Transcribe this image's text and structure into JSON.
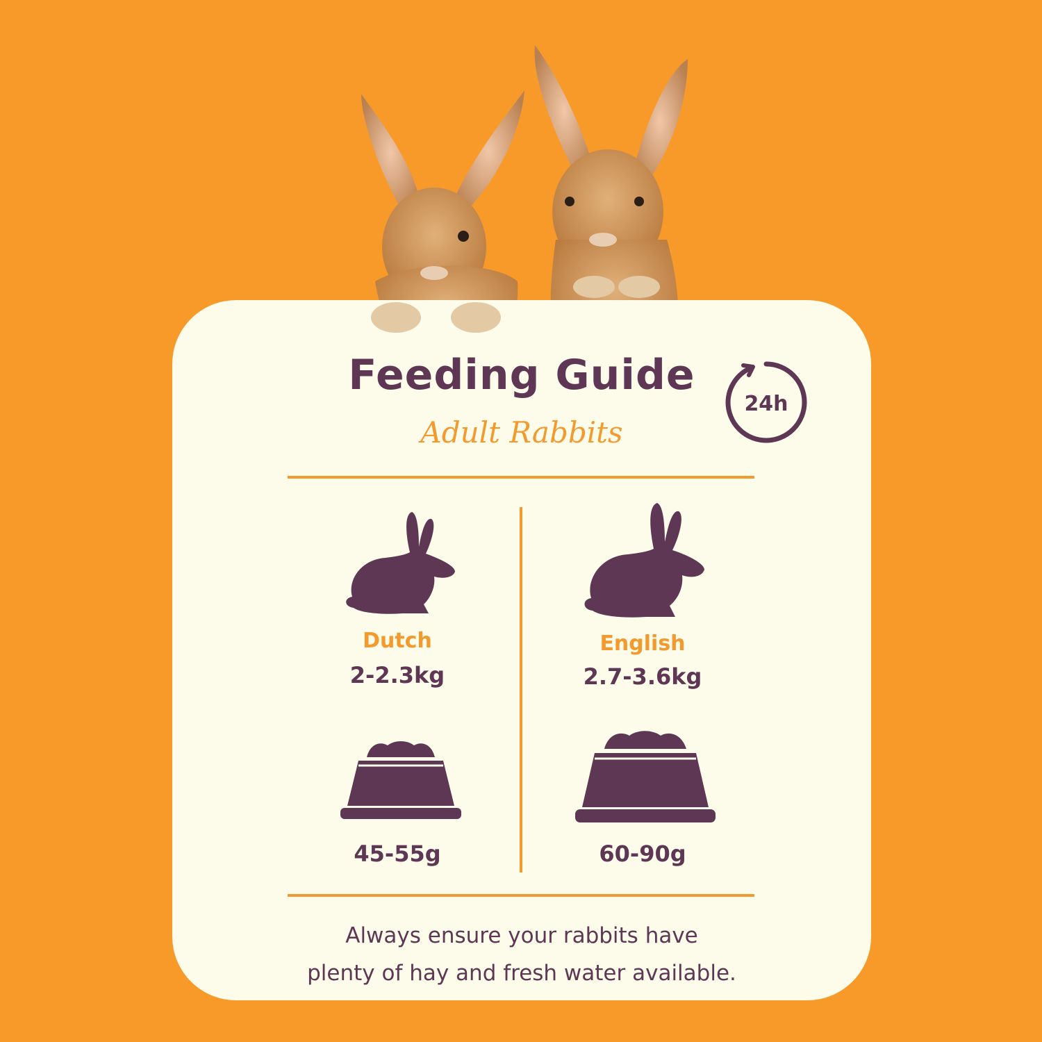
{
  "colors": {
    "background": "#F89A2A",
    "card": "#FDFBE9",
    "accent": "#F29A2E",
    "primary": "#5E3755"
  },
  "header": {
    "title": "Feeding Guide",
    "subtitle": "Adult Rabbits",
    "clock_text": "24h"
  },
  "breeds": [
    {
      "name": "Dutch",
      "weight": "2-2.3kg",
      "portion": "45-55g",
      "icon": "small-rabbit-icon"
    },
    {
      "name": "English",
      "weight": "2.7-3.6kg",
      "portion": "60-90g",
      "icon": "large-rabbit-icon"
    }
  ],
  "note": {
    "line1": "Always ensure your rabbits have",
    "line2": "plenty of hay and fresh water available."
  }
}
